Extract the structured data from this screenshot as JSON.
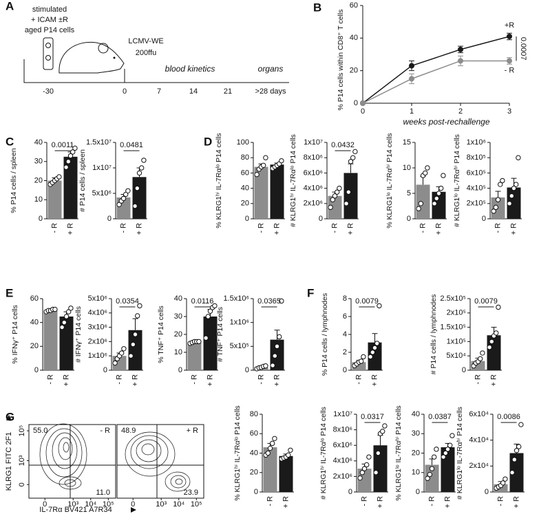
{
  "panel_labels": [
    "A",
    "B",
    "C",
    "D",
    "E",
    "F",
    "G"
  ],
  "diagram": {
    "cell_lines": [
      "stimulated",
      "+ ICAM ±R",
      "aged P14 cells"
    ],
    "injection": [
      "LCMV-WE",
      "200ffu"
    ],
    "phases": [
      "blood kinetics",
      "organs"
    ],
    "timeline": [
      "-30",
      "0",
      "7",
      "14",
      "21",
      ">28 days"
    ]
  },
  "chart_data": [
    {
      "type": "line",
      "ylabel": "% P14 cells within CD8⁺ T cells",
      "xlabel": "weeks post-rechallenge",
      "x": [
        0,
        1,
        2,
        3
      ],
      "xlim": [
        0,
        3
      ],
      "xticks": [
        0,
        1,
        2,
        3
      ],
      "ylim": [
        0,
        60
      ],
      "yticks": [
        0,
        20,
        40,
        60
      ],
      "p_value": "0.0007",
      "series": [
        {
          "name": "+R",
          "color": "#1a1a1a",
          "values": [
            0,
            23,
            33,
            41
          ],
          "errors": [
            0,
            3,
            2,
            2
          ]
        },
        {
          "name": "- R",
          "color": "#8c8c8c",
          "values": [
            0,
            15,
            26,
            26
          ],
          "errors": [
            0,
            3,
            3,
            2
          ]
        }
      ]
    },
    {
      "type": "bar",
      "ylabel": "% P14 cells / spleen",
      "categories": [
        "- R",
        "+ R"
      ],
      "colors": [
        "#8c8c8c",
        "#1a1a1a"
      ],
      "ylim": [
        0,
        40
      ],
      "yticks": [
        0,
        10,
        20,
        30,
        40
      ],
      "values": [
        20,
        32.5
      ],
      "errors": [
        1.5,
        2.5
      ],
      "points": [
        [
          18,
          19,
          20,
          21,
          22
        ],
        [
          27,
          30,
          33,
          35,
          37
        ]
      ],
      "p_value": "0.0011"
    },
    {
      "type": "bar",
      "ylabel": "# P14 cells / spleen",
      "categories": [
        "- R",
        "+ R"
      ],
      "colors": [
        "#8c8c8c",
        "#1a1a1a"
      ],
      "ylim": [
        0,
        15000000
      ],
      "yticks": [
        0,
        {
          "value": 5000000,
          "label": "5x10⁶"
        },
        {
          "value": 10000000,
          "label": "1x10⁷"
        },
        {
          "value": 15000000,
          "label": "1.5x10⁷"
        }
      ],
      "values": [
        4200000,
        8200000
      ],
      "errors": [
        600000,
        1800000
      ],
      "points": [
        [
          2800000,
          3500000,
          4000000,
          4800000,
          5500000
        ],
        [
          2500000,
          6000000,
          9000000,
          10000000,
          11500000
        ]
      ],
      "p_value": "0.0481"
    },
    {
      "type": "bar",
      "ylabel": "% KLRG1ʰⁱ IL-7Rαˡᵒ P14 cells",
      "categories": [
        "- R",
        "+ R"
      ],
      "colors": [
        "#8c8c8c",
        "#1a1a1a"
      ],
      "ylim": [
        0,
        100
      ],
      "yticks": [
        0,
        20,
        40,
        60,
        80,
        100
      ],
      "values": [
        68,
        71
      ],
      "errors": [
        4,
        2
      ],
      "points": [
        [
          58,
          65,
          68,
          70,
          80
        ],
        [
          66,
          68,
          70,
          72,
          76
        ]
      ]
    },
    {
      "type": "bar",
      "ylabel": "# KLRG1ʰⁱ IL-7Rαˡᵒ P14 cells",
      "categories": [
        "- R",
        "+ R"
      ],
      "colors": [
        "#8c8c8c",
        "#1a1a1a"
      ],
      "ylim": [
        0,
        10000000
      ],
      "yticks": [
        0,
        {
          "value": 2000000,
          "label": "2x10⁶"
        },
        {
          "value": 4000000,
          "label": "4x10⁶"
        },
        {
          "value": 6000000,
          "label": "6x10⁶"
        },
        {
          "value": 8000000,
          "label": "8x10⁶"
        },
        {
          "value": 10000000,
          "label": "1x10⁷"
        }
      ],
      "values": [
        3000000,
        6000000
      ],
      "errors": [
        500000,
        1200000
      ],
      "points": [
        [
          1500000,
          2500000,
          3000000,
          3500000,
          4000000
        ],
        [
          2000000,
          3500000,
          7500000,
          8000000,
          8800000
        ]
      ],
      "p_value": "0.0432"
    },
    {
      "type": "bar",
      "ylabel": "% KLRG1ˡᵒ IL-7Rαʰⁱ P14 cells",
      "categories": [
        "- R",
        "+ R"
      ],
      "colors": [
        "#8c8c8c",
        "#1a1a1a"
      ],
      "ylim": [
        0,
        15
      ],
      "yticks": [
        0,
        5,
        10,
        15
      ],
      "values": [
        6.7,
        5.3
      ],
      "errors": [
        1.6,
        1
      ],
      "points": [
        [
          2,
          3,
          8.5,
          9,
          10
        ],
        [
          3,
          4,
          5,
          6,
          8.5
        ]
      ]
    },
    {
      "type": "bar",
      "ylabel": "# KLRG1ˡᵒ IL-7Rαʰⁱ P14 cells",
      "categories": [
        "- R",
        "+ R"
      ],
      "colors": [
        "#8c8c8c",
        "#1a1a1a"
      ],
      "ylim": [
        0,
        1000000
      ],
      "yticks": [
        0,
        {
          "value": 200000,
          "label": "2x10⁵"
        },
        {
          "value": 400000,
          "label": "4x10⁵"
        },
        {
          "value": 600000,
          "label": "6x10⁵"
        },
        {
          "value": 800000,
          "label": "8x10⁵"
        },
        {
          "value": 1000000,
          "label": "1x10⁶"
        }
      ],
      "values": [
        280000,
        410000
      ],
      "errors": [
        80000,
        120000
      ],
      "points": [
        [
          100000,
          150000,
          250000,
          450000,
          500000
        ],
        [
          200000,
          300000,
          400000,
          450000,
          800000
        ]
      ]
    },
    {
      "type": "bar",
      "ylabel": "% IFNγ⁺ P14 cells",
      "categories": [
        "- R",
        "+ R"
      ],
      "colors": [
        "#8c8c8c",
        "#1a1a1a"
      ],
      "ylim": [
        0,
        60
      ],
      "yticks": [
        0,
        20,
        40,
        60
      ],
      "values": [
        50,
        45
      ],
      "errors": [
        1,
        4
      ],
      "points": [
        [
          49,
          50,
          50,
          51,
          51
        ],
        [
          36,
          40,
          45,
          49,
          52
        ]
      ]
    },
    {
      "type": "bar",
      "ylabel": "# IFNγ⁺ P14 cells",
      "categories": [
        "- R",
        "+ R"
      ],
      "colors": [
        "#8c8c8c",
        "#1a1a1a"
      ],
      "ylim": [
        0,
        5000000
      ],
      "yticks": [
        0,
        {
          "value": 1000000,
          "label": "1x10⁶"
        },
        {
          "value": 2000000,
          "label": "2x10⁶"
        },
        {
          "value": 3000000,
          "label": "3x10⁶"
        },
        {
          "value": 4000000,
          "label": "4x10⁶"
        },
        {
          "value": 5000000,
          "label": "5x10⁶"
        }
      ],
      "values": [
        1000000,
        2800000
      ],
      "errors": [
        200000,
        800000
      ],
      "points": [
        [
          500000,
          800000,
          1000000,
          1200000,
          1500000
        ],
        [
          1000000,
          1800000,
          2500000,
          3800000,
          4500000
        ]
      ],
      "p_value": "0.0354"
    },
    {
      "type": "bar",
      "ylabel": "% TNF⁺ P14 cells",
      "categories": [
        "- R",
        "+ R"
      ],
      "colors": [
        "#8c8c8c",
        "#1a1a1a"
      ],
      "ylim": [
        0,
        40
      ],
      "yticks": [
        0,
        10,
        20,
        30,
        40
      ],
      "values": [
        15.5,
        30
      ],
      "errors": [
        0.5,
        4
      ],
      "points": [
        [
          15,
          15.5,
          16,
          16,
          16
        ],
        [
          18,
          30,
          33,
          35,
          36
        ]
      ],
      "p_value": "0.0116"
    },
    {
      "type": "bar",
      "ylabel": "# TNF⁺ P14 cells",
      "categories": [
        "- R",
        "+ R"
      ],
      "colors": [
        "#8c8c8c",
        "#1a1a1a"
      ],
      "ylim": [
        0,
        1500000
      ],
      "yticks": [
        0,
        {
          "value": 500000,
          "label": "5x10⁵"
        },
        {
          "value": 1000000,
          "label": "1x10⁶"
        },
        {
          "value": 1500000,
          "label": "1.5x10⁶"
        }
      ],
      "values": [
        60000,
        640000
      ],
      "errors": [
        20000,
        200000
      ],
      "points": [
        [
          30000,
          50000,
          60000,
          80000,
          90000
        ],
        [
          100000,
          300000,
          500000,
          700000,
          1450000
        ]
      ],
      "p_value": "0.0365"
    },
    {
      "type": "bar",
      "ylabel": "% P14 cells / lymphnodes",
      "categories": [
        "- R",
        "+ R"
      ],
      "colors": [
        "#8c8c8c",
        "#1a1a1a"
      ],
      "ylim": [
        0,
        8
      ],
      "yticks": [
        0,
        2,
        4,
        6,
        8
      ],
      "values": [
        0.9,
        3.1
      ],
      "errors": [
        0.2,
        1
      ],
      "points": [
        [
          0.5,
          0.7,
          0.9,
          1,
          1.5
        ],
        [
          1.5,
          2,
          2.5,
          3,
          7.2
        ]
      ],
      "p_value": "0.0079"
    },
    {
      "type": "bar",
      "ylabel": "# P14 cells / lymphnodes",
      "categories": [
        "- R",
        "+ R"
      ],
      "colors": [
        "#8c8c8c",
        "#1a1a1a"
      ],
      "ylim": [
        0,
        250000
      ],
      "yticks": [
        0,
        {
          "value": 50000,
          "label": "5x10⁴"
        },
        {
          "value": 100000,
          "label": "1x10⁵"
        },
        {
          "value": 150000,
          "label": "1.5x10⁵"
        },
        {
          "value": 200000,
          "label": "2x10⁵"
        },
        {
          "value": 250000,
          "label": "2.5x10⁵"
        }
      ],
      "values": [
        32000,
        122000
      ],
      "errors": [
        10000,
        28000
      ],
      "points": [
        [
          15000,
          25000,
          30000,
          40000,
          60000
        ],
        [
          80000,
          100000,
          120000,
          130000,
          220000
        ]
      ],
      "p_value": "0.0079"
    },
    {
      "type": "contour",
      "name": "- R",
      "ylabel": "KLRG1 FITC 2F1",
      "xlabel": "IL-7Rα BV421 A7R34",
      "xlim": [
        -200,
        262144
      ],
      "ylim": [
        -200,
        262144
      ],
      "xticks": [
        0,
        {
          "value": 1000,
          "label": "10³"
        },
        {
          "value": 10000,
          "label": "10⁴"
        },
        {
          "value": 100000,
          "label": "10⁵"
        }
      ],
      "yticks": [
        0,
        {
          "value": 1000,
          "label": "10³"
        },
        {
          "value": 100000,
          "label": "10⁵"
        }
      ],
      "values": [
        55.0,
        11.0
      ],
      "value_labels": [
        "55.0",
        "11.0"
      ]
    },
    {
      "type": "contour",
      "name": "+ R",
      "xlim": [
        -200,
        262144
      ],
      "ylim": [
        -200,
        262144
      ],
      "xticks": [
        0,
        {
          "value": 1000,
          "label": "10³"
        },
        {
          "value": 10000,
          "label": "10⁴"
        },
        {
          "value": 100000,
          "label": "10⁵"
        }
      ],
      "values": [
        48.9,
        23.9
      ],
      "value_labels": [
        "48.9",
        "23.9"
      ]
    },
    {
      "type": "bar",
      "ylabel": "% KLRG1ʰⁱ IL-7Rαˡᵒ P14 cells",
      "categories": [
        "- R",
        "+ R"
      ],
      "colors": [
        "#8c8c8c",
        "#1a1a1a"
      ],
      "ylim": [
        0,
        80
      ],
      "yticks": [
        0,
        20,
        40,
        60,
        80
      ],
      "values": [
        46,
        37
      ],
      "errors": [
        4,
        2
      ],
      "points": [
        [
          38,
          40,
          45,
          50,
          55
        ],
        [
          34,
          35,
          36,
          38,
          43
        ]
      ]
    },
    {
      "type": "bar",
      "ylabel": "# KLRG1ʰⁱ IL-7Rαˡᵒ P14 cells",
      "categories": [
        "- R",
        "+ R"
      ],
      "colors": [
        "#8c8c8c",
        "#1a1a1a"
      ],
      "ylim": [
        0,
        10000000
      ],
      "yticks": [
        0,
        {
          "value": 2000000,
          "label": "2x10⁶"
        },
        {
          "value": 4000000,
          "label": "4x10⁶"
        },
        {
          "value": 6000000,
          "label": "6x10⁶"
        },
        {
          "value": 8000000,
          "label": "8x10⁶"
        },
        {
          "value": 10000000,
          "label": "1x10⁷"
        }
      ],
      "values": [
        3000000,
        6000000
      ],
      "errors": [
        600000,
        1300000
      ],
      "points": [
        [
          1800000,
          2500000,
          3000000,
          3500000,
          4500000
        ],
        [
          2500000,
          5000000,
          7500000,
          7800000,
          8500000
        ]
      ],
      "p_value": "0.0317"
    },
    {
      "type": "bar",
      "ylabel": "% KLRG1ˡᵒ IL-7Rαʰⁱ P14 cells",
      "categories": [
        "- R",
        "+ R"
      ],
      "colors": [
        "#8c8c8c",
        "#1a1a1a"
      ],
      "ylim": [
        0,
        40
      ],
      "yticks": [
        0,
        10,
        20,
        30,
        40
      ],
      "values": [
        14,
        23
      ],
      "errors": [
        3,
        2
      ],
      "points": [
        [
          7,
          9,
          12,
          18,
          22
        ],
        [
          18,
          20,
          22,
          24,
          29
        ]
      ],
      "p_value": "0.0387"
    },
    {
      "type": "bar",
      "ylabel": "# KLRG1ˡᵒ IL-7Rαʰⁱ P14 cells",
      "categories": [
        "- R",
        "+ R"
      ],
      "colors": [
        "#8c8c8c",
        "#1a1a1a"
      ],
      "ylim": [
        0,
        60000
      ],
      "yticks": [
        0,
        {
          "value": 20000,
          "label": "2x10⁴"
        },
        {
          "value": 40000,
          "label": "4x10⁴"
        },
        {
          "value": 60000,
          "label": "6x10⁴"
        }
      ],
      "values": [
        6000,
        30000
      ],
      "errors": [
        2000,
        7000
      ],
      "points": [
        [
          3000,
          4000,
          5000,
          7000,
          10000
        ],
        [
          15000,
          25000,
          32000,
          35000,
          52000
        ]
      ],
      "p_value": "0.0086"
    }
  ]
}
